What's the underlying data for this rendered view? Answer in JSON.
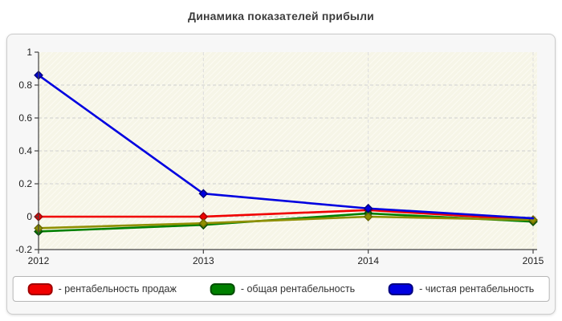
{
  "title": "Динамика показателей прибыли",
  "legend": {
    "items": [
      {
        "label": "- рентабельность продаж",
        "color": "#f00000",
        "border": "#a00000"
      },
      {
        "label": "- общая рентабельность",
        "color": "#008000",
        "border": "#004d00"
      },
      {
        "label": "- чистая рентабельность",
        "color": "#0000e0",
        "border": "#00007f"
      }
    ]
  },
  "chart_data": {
    "type": "line",
    "title": "Динамика показателей прибыли",
    "x": [
      "2012",
      "2013",
      "2014",
      "2015"
    ],
    "series": [
      {
        "name": "рентабельность продаж",
        "color": "#f00000",
        "marker_border": "#a00000",
        "values": [
          0.0,
          0.0,
          0.04,
          -0.02
        ],
        "in_legend": true
      },
      {
        "name": "общая рентабельность",
        "color": "#008000",
        "marker_border": "#004d00",
        "values": [
          -0.09,
          -0.05,
          0.02,
          -0.03
        ],
        "in_legend": true
      },
      {
        "name": "",
        "color": "#8f8f00",
        "marker_border": "#6a6a00",
        "values": [
          -0.07,
          -0.04,
          0.0,
          -0.02
        ],
        "in_legend": false
      },
      {
        "name": "чистая рентабельность",
        "color": "#0000e0",
        "marker_border": "#00007f",
        "values": [
          0.86,
          0.14,
          0.05,
          -0.01
        ],
        "in_legend": true,
        "markers": [
          true,
          true,
          true,
          false
        ]
      }
    ],
    "ylim": [
      -0.2,
      1
    ],
    "yticks": [
      {
        "v": 1,
        "label": "1"
      },
      {
        "v": 0.8,
        "label": "0.8"
      },
      {
        "v": 0.6,
        "label": "0.6"
      },
      {
        "v": 0.4,
        "label": "0.4"
      },
      {
        "v": 0.2,
        "label": "0.2"
      },
      {
        "v": 0,
        "label": "0"
      },
      {
        "v": -0.2,
        "label": "-0.2"
      }
    ],
    "grid": true,
    "legend_position": "bottom"
  }
}
